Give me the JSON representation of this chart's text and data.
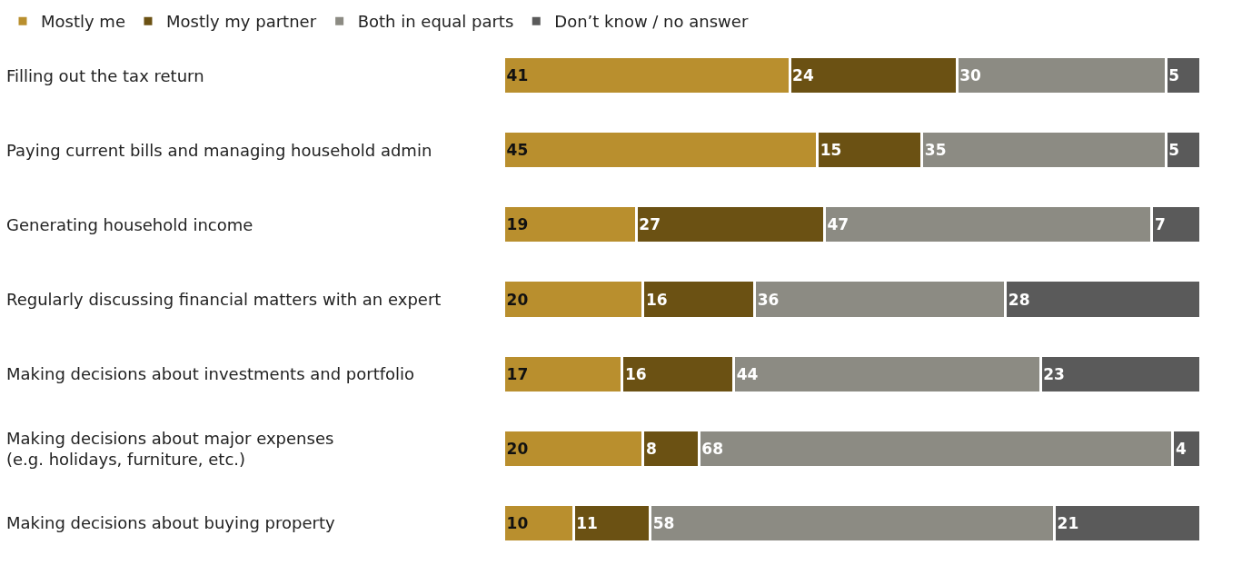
{
  "chart_data": {
    "type": "bar",
    "orientation": "horizontal",
    "stacked": true,
    "data_labels": true,
    "legend": "top left",
    "categories": [
      "Filling out the tax return",
      "Paying current bills and managing household admin",
      "Generating household income",
      "Regularly discussing financial matters with an expert",
      "Making decisions about investments and portfolio",
      "Making decisions about major expenses\n(e.g. holidays, furniture, etc.)",
      "Making decisions about buying property"
    ],
    "series": [
      {
        "name": "Mostly me",
        "color": "#b98f2e",
        "values": [
          41,
          45,
          19,
          20,
          17,
          20,
          10
        ]
      },
      {
        "name": "Mostly my partner",
        "color": "#6b5113",
        "values": [
          24,
          15,
          27,
          16,
          16,
          8,
          11
        ]
      },
      {
        "name": "Both in equal parts",
        "color": "#8c8b83",
        "values": [
          30,
          35,
          47,
          36,
          44,
          68,
          58
        ]
      },
      {
        "name": "Don’t know / no answer",
        "color": "#5a5a5a",
        "values": [
          5,
          5,
          7,
          28,
          23,
          4,
          21
        ]
      }
    ]
  }
}
